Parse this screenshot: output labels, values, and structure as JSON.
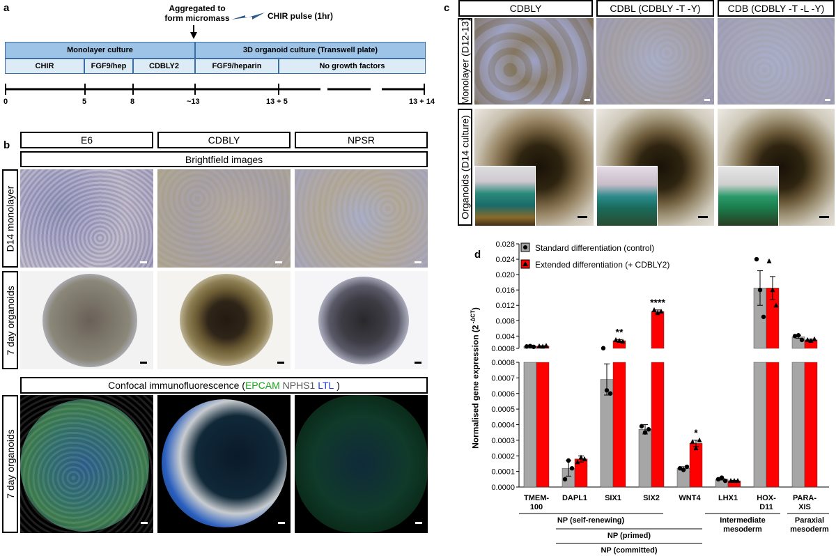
{
  "panel_a": {
    "label": "a",
    "aggregated_text_1": "Aggregated to",
    "aggregated_text_2": "form micromass",
    "chir_pulse": "CHIR pulse (1hr)",
    "row1": [
      "Monolayer culture",
      "3D organoid culture (Transwell plate)"
    ],
    "row2": [
      "CHIR",
      "FGF9/hep",
      "CDBLY2",
      "FGF9/heparin",
      "No growth factors"
    ],
    "timeline_ticks": [
      "0",
      "5",
      "8",
      "~13",
      "13 + 5",
      "13 + 14"
    ]
  },
  "panel_b": {
    "label": "b",
    "conditions": [
      "E6",
      "CDBLY",
      "NPSR"
    ],
    "brightfield_header": "Brightfield images",
    "row_labels": [
      "D14 monolayer",
      "7 day organoids",
      "7 day organoids"
    ],
    "confocal_prefix": "Confocal immunofluorescence (",
    "confocal_epcam": "EPCAM",
    "confocal_nphs1": " NPHS1 ",
    "confocal_ltl": "LTL",
    "confocal_suffix": " )",
    "colors": {
      "epcam": "#1aa31a",
      "nphs1": "#555555",
      "ltl": "#1f3fd6"
    }
  },
  "panel_c": {
    "label": "c",
    "conditions": [
      "CDBLY",
      "CDBL (CDBLY -T -Y)",
      "CDB (CDBLY -T -L -Y)"
    ],
    "row_labels": [
      "Monolayer (D12-13)",
      "Organoids (D14 culture)"
    ]
  },
  "panel_d": {
    "label": "d",
    "chart_data": {
      "type": "bar",
      "ylabel": "Normalised gene expression (2 -ΔCT)",
      "ylabel_main": "Normalised gene expression (2",
      "ylabel_sup": " -ΔCT",
      "ylabel_close": ")",
      "legend": [
        "Standard differentiation (control)",
        "Extended differentiation (+ CDBLY2)"
      ],
      "legend_placement": "top-left",
      "colors": {
        "control": "#a6a6a6",
        "extended": "#ff0000"
      },
      "categories": [
        "TMEM-\n100",
        "DAPL1",
        "SIX1",
        "SIX2",
        "WNT4",
        "LHX1",
        "HOX-\nD11",
        "PARA-\nXIS"
      ],
      "category_lines": [
        [
          "TMEM-",
          "100"
        ],
        [
          "DAPL1"
        ],
        [
          "SIX1"
        ],
        [
          "SIX2"
        ],
        [
          "WNT4"
        ],
        [
          "LHX1"
        ],
        [
          "HOX-",
          "D11"
        ],
        [
          "PARA-",
          "XIS"
        ]
      ],
      "series": [
        {
          "name": "Standard differentiation (control)",
          "values": [
            0.0013,
            0.00012,
            0.00069,
            0.00037,
            0.00012,
            5e-05,
            0.0165,
            0.0038
          ],
          "errors": [
            0.0001,
            5e-05,
            0.0001,
            3e-05,
            1e-05,
            5e-06,
            0.0045,
            0.0004
          ]
        },
        {
          "name": "Extended differentiation (+ CDBLY2)",
          "values": [
            0.0014,
            0.00018,
            0.0028,
            0.0104,
            0.00028,
            4e-05,
            0.0165,
            0.003
          ],
          "errors": [
            0.0001,
            2e-05,
            0.0003,
            0.0004,
            2e-05,
            3e-06,
            0.003,
            0.0002
          ]
        }
      ],
      "points_control": [
        [
          0.0013,
          0.0014,
          0.0012
        ],
        [
          5e-05,
          0.00017,
          0.00012
        ],
        [
          0.00085,
          0.00062,
          0.0006
        ],
        [
          0.00039,
          0.00035,
          0.00037
        ],
        [
          0.00012,
          0.00011,
          0.00013
        ],
        [
          5e-05,
          6e-05,
          4e-05
        ],
        [
          0.024,
          0.016,
          0.009
        ],
        [
          0.004,
          0.0042,
          0.003
        ]
      ],
      "points_extended": [
        [
          0.0014,
          0.0013,
          0.0015
        ],
        [
          0.00016,
          0.00019,
          0.00018
        ],
        [
          0.003,
          0.0028,
          0.0026
        ],
        [
          0.0108,
          0.01,
          0.0104
        ],
        [
          0.00029,
          0.00025,
          0.0003
        ],
        [
          4e-05,
          4e-05,
          4e-05
        ],
        [
          0.0235,
          0.016,
          0.012
        ],
        [
          0.003,
          0.0028,
          0.0032
        ]
      ],
      "significance": [
        "",
        "",
        "**",
        "****",
        "*",
        "",
        "",
        ""
      ],
      "upper_ticks": [
        "0.0008",
        "0.004",
        "0.008",
        "0.012",
        "0.016",
        "0.020",
        "0.024",
        "0.028"
      ],
      "lower_ticks": [
        "0.0000",
        "0.0001",
        "0.0002",
        "0.0003",
        "0.0004",
        "0.0005",
        "0.0006",
        "0.0007",
        "0.0008"
      ],
      "ylim_upper": [
        0.0008,
        0.028
      ],
      "ylim_lower": [
        0,
        0.0008
      ],
      "groups": [
        "NP (self-renewing)",
        "NP (primed)",
        "NP (committed)",
        "Intermediate",
        "mesoderm",
        "Paraxial",
        "mesoderm"
      ]
    }
  }
}
